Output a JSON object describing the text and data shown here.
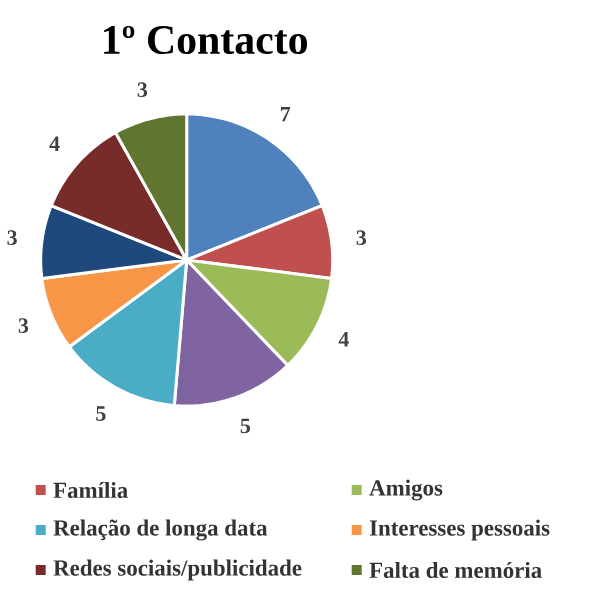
{
  "chart_data": {
    "type": "pie",
    "title": "1º Contacto",
    "categories": [
      null,
      "Família",
      "Amigos",
      null,
      "Relação de longa data",
      "Interesses pessoais",
      null,
      "Redes sociais/publicidade",
      "Falta de memória"
    ],
    "values": [
      7,
      3,
      4,
      5,
      5,
      3,
      3,
      4,
      3
    ],
    "colors": [
      "#4f81bd",
      "#c0504d",
      "#9bbb59",
      "#8064a2",
      "#4bacc6",
      "#f79646",
      "#1f497d",
      "#772c2a",
      "#5f7530"
    ],
    "data_labels": true,
    "legend": "bottom"
  }
}
